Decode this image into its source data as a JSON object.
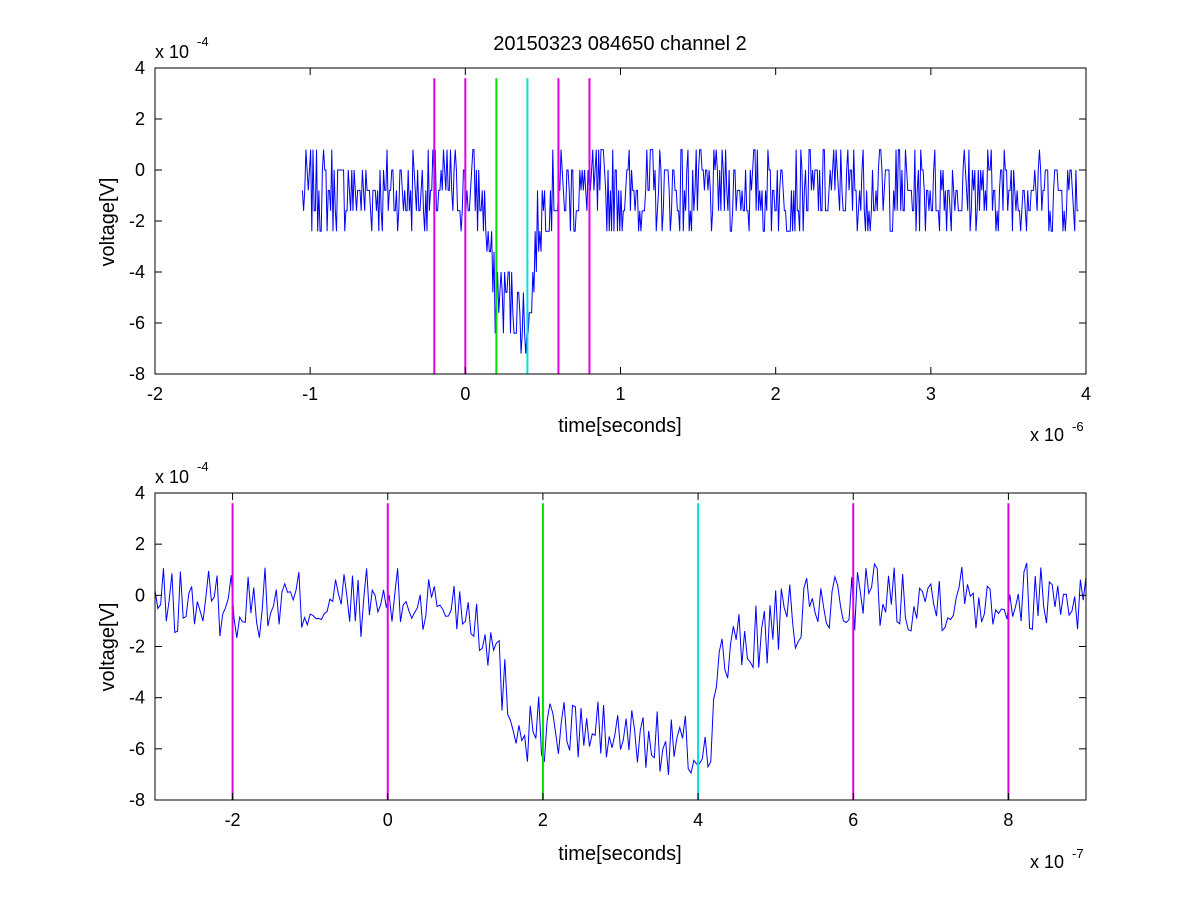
{
  "chart_data": [
    {
      "type": "line",
      "title": "20150323 084650 channel 2",
      "xlabel": "time[seconds]",
      "ylabel": "voltage[V]",
      "x_scale_label": {
        "base": "x 10",
        "exponent": "-6"
      },
      "y_scale_label": {
        "base": "x 10",
        "exponent": "-4"
      },
      "xlim": [
        -2,
        4
      ],
      "ylim": [
        -8,
        4
      ],
      "x_ticks": [
        "-2",
        "-1",
        "0",
        "1",
        "2",
        "3",
        "4"
      ],
      "y_ticks": [
        "-8",
        "-6",
        "-4",
        "-2",
        "0",
        "2",
        "4"
      ],
      "grid": false,
      "signal": {
        "color": "#0000ff",
        "x_range": [
          -1.05,
          3.95
        ],
        "key_points": [
          {
            "x": -1.05,
            "y": -0.8
          },
          {
            "x": 0.1,
            "y": -0.8
          },
          {
            "x": 0.12,
            "y": -1.5
          },
          {
            "x": 0.15,
            "y": -3.0
          },
          {
            "x": 0.18,
            "y": -4.8
          },
          {
            "x": 0.3,
            "y": -5.0
          },
          {
            "x": 0.38,
            "y": -6.0
          },
          {
            "x": 0.42,
            "y": -5.5
          },
          {
            "x": 0.46,
            "y": -2.5
          },
          {
            "x": 0.52,
            "y": -0.8
          },
          {
            "x": 3.95,
            "y": -0.8
          }
        ],
        "noise_amplitude": 1.6
      },
      "markers": [
        {
          "x": -0.2,
          "color": "#e000e0"
        },
        {
          "x": 0.0,
          "color": "#e000e0"
        },
        {
          "x": 0.2,
          "color": "#00e000"
        },
        {
          "x": 0.4,
          "color": "#00e0e0"
        },
        {
          "x": 0.6,
          "color": "#e000e0"
        },
        {
          "x": 0.8,
          "color": "#e000e0"
        }
      ],
      "marker_y_range": [
        -8,
        3.6
      ]
    },
    {
      "type": "line",
      "title": "",
      "xlabel": "time[seconds]",
      "ylabel": "voltage[V]",
      "x_scale_label": {
        "base": "x 10",
        "exponent": "-7"
      },
      "y_scale_label": {
        "base": "x 10",
        "exponent": "-4"
      },
      "xlim": [
        -3,
        9
      ],
      "ylim": [
        -8,
        4
      ],
      "x_ticks": [
        "-2",
        "0",
        "2",
        "4",
        "6",
        "8"
      ],
      "x_tick_values": [
        -2,
        0,
        2,
        4,
        6,
        8
      ],
      "y_ticks": [
        "-8",
        "-6",
        "-4",
        "-2",
        "0",
        "2",
        "4"
      ],
      "grid": false,
      "signal": {
        "color": "#0000ff",
        "x_range": [
          -3,
          9
        ],
        "key_points": [
          {
            "x": -3.0,
            "y": -0.3
          },
          {
            "x": 1.0,
            "y": -0.3
          },
          {
            "x": 1.3,
            "y": -1.5
          },
          {
            "x": 1.5,
            "y": -3.5
          },
          {
            "x": 1.7,
            "y": -5.2
          },
          {
            "x": 2.5,
            "y": -5.3
          },
          {
            "x": 3.5,
            "y": -5.8
          },
          {
            "x": 4.1,
            "y": -6.3
          },
          {
            "x": 4.2,
            "y": -4.5
          },
          {
            "x": 4.3,
            "y": -2.5
          },
          {
            "x": 5.0,
            "y": -1.2
          },
          {
            "x": 6.0,
            "y": 0.0
          },
          {
            "x": 9.0,
            "y": 0.0
          }
        ],
        "noise_amplitude": 1.4
      },
      "markers": [
        {
          "x": -2,
          "color": "#e000e0"
        },
        {
          "x": 0,
          "color": "#e000e0"
        },
        {
          "x": 2,
          "color": "#00e000"
        },
        {
          "x": 4,
          "color": "#00e0e0"
        },
        {
          "x": 6,
          "color": "#e000e0"
        },
        {
          "x": 8,
          "color": "#e000e0"
        }
      ],
      "marker_y_range": [
        -8,
        3.6
      ]
    }
  ]
}
